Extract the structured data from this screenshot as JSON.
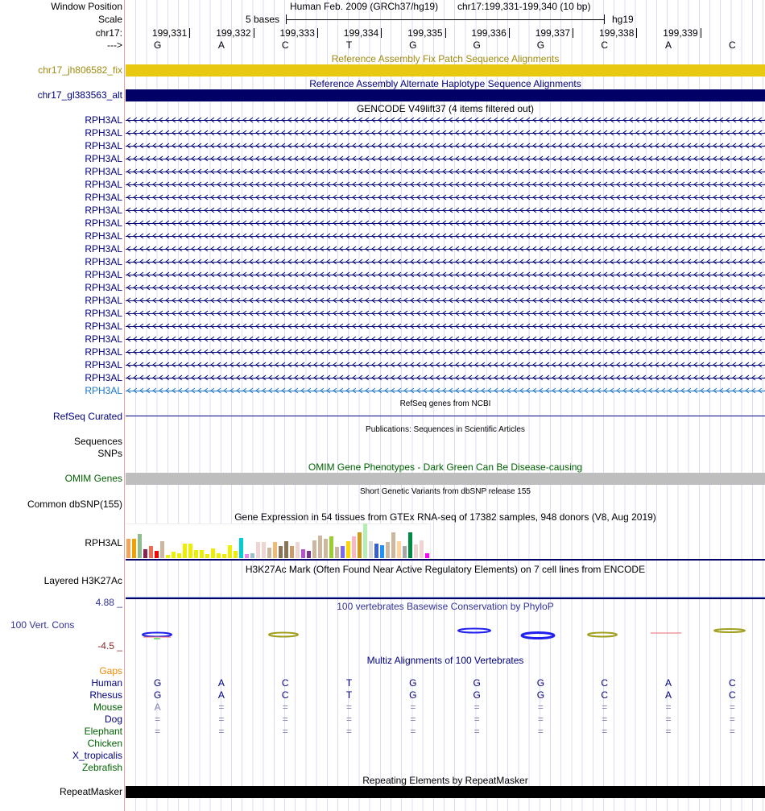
{
  "header": {
    "window_position_label": "Window Position",
    "assembly": "Human Feb. 2009 (GRCh37/hg19)",
    "position": "chr17:199,331-199,340 (10 bp)",
    "scale_label": "Scale",
    "scale_text": "5 bases",
    "scale_db": "hg19",
    "chrom_label": "chr17:",
    "strand_label": "--->"
  },
  "positions": [
    "199,331",
    "199,332",
    "199,333",
    "199,334",
    "199,335",
    "199,336",
    "199,337",
    "199,338",
    "199,339"
  ],
  "bases": [
    "G",
    "A",
    "C",
    "T",
    "G",
    "G",
    "G",
    "C",
    "A",
    "C"
  ],
  "tracks": {
    "fix": {
      "title": "Reference Assembly Fix Patch Sequence Alignments",
      "label": "chr17_jh806582_fix",
      "color": "#e8c810"
    },
    "alt": {
      "title": "Reference Assembly Alternate Haplotype Sequence Alignments",
      "label": "chr17_gl383563_alt",
      "color": "#000066"
    },
    "gencode": {
      "title": "GENCODE V49lift37 (4 items filtered out)",
      "items": [
        "RPH3AL",
        "RPH3AL",
        "RPH3AL",
        "RPH3AL",
        "RPH3AL",
        "RPH3AL",
        "RPH3AL",
        "RPH3AL",
        "RPH3AL",
        "RPH3AL",
        "RPH3AL",
        "RPH3AL",
        "RPH3AL",
        "RPH3AL",
        "RPH3AL",
        "RPH3AL",
        "RPH3AL",
        "RPH3AL",
        "RPH3AL",
        "RPH3AL",
        "RPH3AL",
        "RPH3AL"
      ]
    },
    "refseq": {
      "title": "RefSeq genes from NCBI",
      "label": "RefSeq Curated"
    },
    "pubs": {
      "title": "Publications: Sequences in Scientific Articles",
      "label1": "Sequences",
      "label2": "SNPs"
    },
    "omim": {
      "title": "OMIM Gene Phenotypes - Dark Green Can Be Disease-causing",
      "label": "OMIM Genes"
    },
    "dbsnp": {
      "title": "Short Genetic Variants from dbSNP release 155",
      "label": "Common dbSNP(155)"
    },
    "gtex": {
      "title": "Gene Expression in 54 tissues from GTEx RNA-seq of 17382 samples, 948 donors (V8, Aug 2019)",
      "label": "RPH3AL"
    },
    "h3k27ac": {
      "title": "H3K27Ac Mark (Often Found Near Active Regulatory Elements) on 7 cell lines from ENCODE",
      "label": "Layered H3K27Ac"
    },
    "phylop": {
      "title": "100 vertebrates Basewise Conservation by PhyloP",
      "label": "100 Vert. Cons",
      "max": "4.88 _",
      "min": "-4.5 _"
    },
    "multiz": {
      "title": "Multiz Alignments of 100 Vertebrates",
      "gaps_label": "Gaps",
      "species": [
        {
          "name": "Human",
          "color": "#000080",
          "seq": [
            "G",
            "A",
            "C",
            "T",
            "G",
            "G",
            "G",
            "C",
            "A",
            "C"
          ]
        },
        {
          "name": "Rhesus",
          "color": "#000080",
          "seq": [
            "G",
            "A",
            "C",
            "T",
            "G",
            "G",
            "G",
            "C",
            "A",
            "C"
          ]
        },
        {
          "name": "Mouse",
          "color": "#006400",
          "seq": [
            "A",
            "=",
            "=",
            "=",
            "=",
            "=",
            "=",
            "=",
            "=",
            "="
          ]
        },
        {
          "name": "Dog",
          "color": "#000080",
          "seq": [
            "=",
            "=",
            "=",
            "=",
            "=",
            "=",
            "=",
            "=",
            "=",
            "="
          ]
        },
        {
          "name": "Elephant",
          "color": "#006400",
          "seq": [
            "=",
            "=",
            "=",
            "=",
            "=",
            "=",
            "=",
            "=",
            "=",
            "="
          ]
        },
        {
          "name": "Chicken",
          "color": "#006400",
          "seq": []
        },
        {
          "name": "X_tropicalis",
          "color": "#000080",
          "seq": []
        },
        {
          "name": "Zebrafish",
          "color": "#006400",
          "seq": []
        }
      ]
    },
    "repeatmasker": {
      "title": "Repeating Elements by RepeatMasker",
      "label": "RepeatMasker"
    }
  },
  "gtex_values": [
    24,
    24,
    30,
    11,
    15,
    9,
    21,
    4,
    8,
    6,
    18,
    18,
    10,
    10,
    5,
    12,
    6,
    5,
    16,
    9,
    25,
    5,
    6,
    20,
    20,
    13,
    20,
    15,
    21,
    15,
    20,
    11,
    9,
    22,
    28,
    24,
    27,
    14,
    15,
    21,
    27,
    32,
    43,
    21,
    18,
    16,
    20,
    32,
    21,
    15,
    32,
    17,
    22,
    6
  ],
  "gtex_colors": [
    "#f5a55a",
    "#f0a000",
    "#8fbc8f",
    "#8b2252",
    "#ee6a50",
    "#ff0000",
    "#cdb79e",
    "#eeee00",
    "#eeee00",
    "#eeee00",
    "#eeee00",
    "#eeee00",
    "#eeee00",
    "#eeee00",
    "#eeee00",
    "#eeee00",
    "#eeee00",
    "#eeee00",
    "#eeee00",
    "#eeee00",
    "#00ced1",
    "#ee82ee",
    "#9ac0cd",
    "#eed5d2",
    "#eed5d2",
    "#cdb79e",
    "#eebb77",
    "#8b7355",
    "#8b7355",
    "#cd9b69",
    "#eed5d2",
    "#b452cd",
    "#7a378b",
    "#cdb79e",
    "#cdb79e",
    "#cdb79e",
    "#9acd32",
    "#cdb79e",
    "#7b68ee",
    "#ffd700",
    "#ffb6c1",
    "#cd9b1d",
    "#b4eeb4",
    "#d9d9d9",
    "#3a5fcd",
    "#1e90ff",
    "#cdb79e",
    "#cdb79e",
    "#ffd39b",
    "#a6a6a6",
    "#008b45",
    "#eed5d2",
    "#eed5d2",
    "#ff00ff"
  ]
}
